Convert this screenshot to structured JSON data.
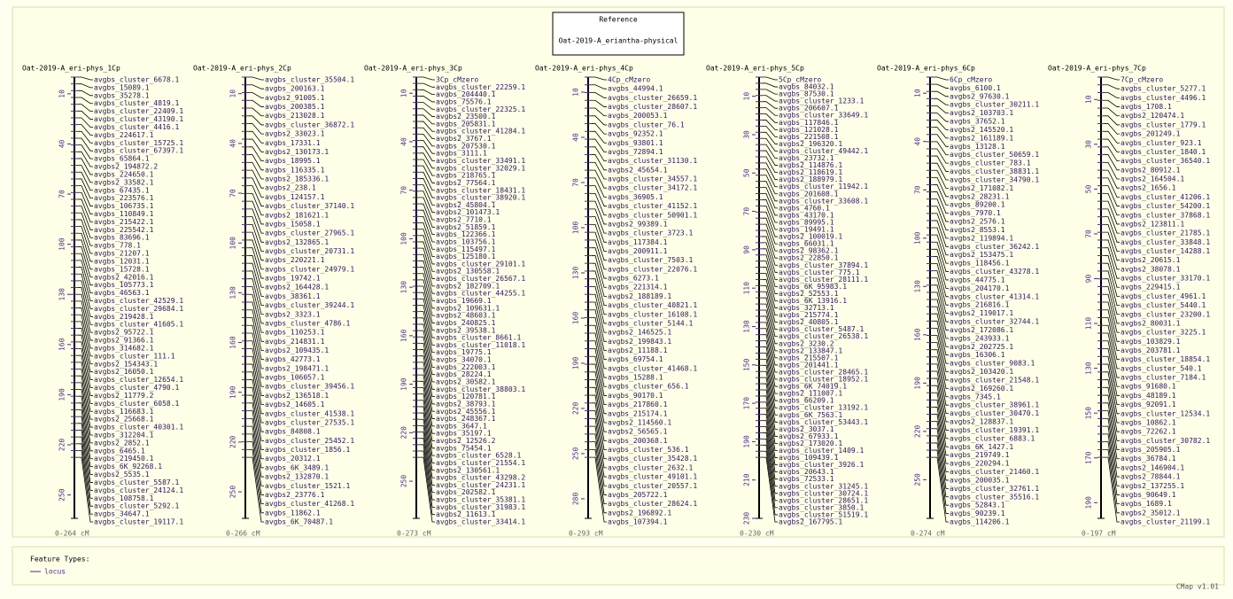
{
  "reference": {
    "title": "Reference",
    "name": "Oat-2019-A_eriantha-physical"
  },
  "maps": [
    {
      "title": "Oat-2019-A_eri-phys_1Cp",
      "range": {
        "value": 264,
        "label": "0-264 cM"
      },
      "ticks": [
        10,
        40,
        70,
        100,
        130,
        160,
        190,
        220,
        250
      ],
      "features": [
        "avgbs_cluster_6678.1",
        "avgbs_15089.1",
        "avgbs_35278.1",
        "avgbs_cluster_4819.1",
        "avgbs_cluster_22409.1",
        "avgbs_cluster_43190.1",
        "avgbs_cluster_4416.1",
        "avgbs_224617.1",
        "avgbs_cluster_15725.1",
        "avgbs_cluster_67397.1",
        "avgbs_65864.1",
        "avgbs2_194872.2",
        "avgbs_224650.1",
        "avgbs2_33582.1",
        "avgbs_67435.1",
        "avgbs_223576.1",
        "avgbs_106735.1",
        "avgbs_110849.1",
        "avgbs_215422.1",
        "avgbs_225542.1",
        "avgbs_83696.1",
        "avgbs_778.1",
        "avgbs_21207.1",
        "avgbs_12031.1",
        "avgbs_15728.1",
        "avgbs2_42016.1",
        "avgbs_105773.1",
        "avgbs_46563.1",
        "avgbs_cluster_42529.1",
        "avgbs_cluster_29684.1",
        "avgbs_219428.1",
        "avgbs_cluster_41605.1",
        "avgbs2_95722.1",
        "avgbs2_91366.1",
        "avgbs_314682.1",
        "avgbs_cluster_111.1",
        "avgbs2_154343.1",
        "avgbs2_16050.1",
        "avgbs_cluster_12654.1",
        "avgbs_cluster_4790.1",
        "avgbs2_11779.2",
        "avgbs_cluster_6058.1",
        "avgbs_116683.1",
        "avgbs2_25668.1",
        "avgbs_cluster_40301.1",
        "avgbs_312204.1",
        "avgbs2_2852.1",
        "avgbs_6465.1",
        "avgbs_219450.1",
        "avgbs_6K_92268.1",
        "avgbs2_5535.1",
        "avgbs_cluster_5587.1",
        "avgbs_cluster_24124.1",
        "avgbs_108758.1",
        "avgbs_cluster_5292.1",
        "avgbs_34647.1",
        "avgbs_cluster_19117.1"
      ]
    },
    {
      "title": "Oat-2019-A_eri-phys_2Cp",
      "range": {
        "value": 266,
        "label": "0-266 cM"
      },
      "ticks": [
        10,
        40,
        70,
        100,
        130,
        160,
        190,
        220,
        250
      ],
      "features": [
        "avgbs_cluster_35504.1",
        "avgbs_200163.1",
        "avgbs2_91005.1",
        "avgbs_200385.1",
        "avgbs_213028.1",
        "avgbs_cluster_36872.1",
        "avgbs2_33023.1",
        "avgbs_17331.1",
        "avgbs2_130173.1",
        "avgbs_18995.1",
        "avgbs_116335.1",
        "avgbs2_185336.1",
        "avgbs2_238.1",
        "avgbs_124157.1",
        "avgbs_cluster_37140.1",
        "avgbs2_181621.1",
        "avgbs_15058.1",
        "avgbs_cluster_27965.1",
        "avgbs2_132865.1",
        "avgbs_cluster_20731.1",
        "avgbs_220221.1",
        "avgbs_cluster_24979.1",
        "avgbs_19742.1",
        "avgbs2_164428.1",
        "avgbs_38361.1",
        "avgbs_cluster_39244.1",
        "avgbs2_3323.1",
        "avgbs_cluster_4786.1",
        "avgbs_110253.1",
        "avgbs_214831.1",
        "avgbs2_109435.1",
        "avgbs_42773.1",
        "avgbs2_198471.1",
        "avgbs_106057.1",
        "avgbs_cluster_39456.1",
        "avgbs2_136518.1",
        "avgbs2_14605.1",
        "avgbs_cluster_41538.1",
        "avgbs_cluster_27535.1",
        "avgbs_84808.1",
        "avgbs_cluster_25452.1",
        "avgbs_cluster_1856.1",
        "avgbs_20312.1",
        "avgbs_6K_3489.1",
        "avgbs2_132870.1",
        "avgbs_cluster_1521.1",
        "avgbs2_23776.1",
        "avgbs_cluster_41268.1",
        "avgbs_11862.1",
        "avgbs_6K_70487.1"
      ]
    },
    {
      "title": "Oat-2019-A_eri-phys_3Cp",
      "range": {
        "value": 273,
        "label": "0-273 cM"
      },
      "ticks": [
        10,
        40,
        70,
        100,
        130,
        160,
        190,
        220,
        250
      ],
      "features": [
        "3Cp_cMzero",
        "avgbs_cluster_22259.1",
        "avgbs_204440.1",
        "avgbs_75576.1",
        "avgbs_cluster_22325.1",
        "avgbs2_23500.1",
        "avgbs_205831.1",
        "avgbs_cluster_41284.1",
        "avgbs2_3767.1",
        "avgbs_207530.1",
        "avgbs_3111.1",
        "avgbs_cluster_33491.1",
        "avgbs_cluster_32029.1",
        "avgbs_218765.1",
        "avgbs2_77564.1",
        "avgbs_cluster_18431.1",
        "avgbs_cluster_38920.1",
        "avgbs2_45804.1",
        "avgbs2_101473.1",
        "avgbs2_7710.1",
        "avgbs2_51859.1",
        "avgbs_122366.1",
        "avgbs_103756.1",
        "avgbs_115497.1",
        "avgbs_125180.1",
        "avgbs_cluster_29101.1",
        "avgbs2_130558.1",
        "avgbs_cluster_26567.1",
        "avgbs2_182709.1",
        "avgbs_cluster_44255.1",
        "avgbs_19669.1",
        "avgbs2_109631.1",
        "avgbs2_48603.1",
        "avgbs_240825.1",
        "avgbs2_39538.1",
        "avgbs_cluster_8661.1",
        "avgbs_cluster_11018.1",
        "avgbs_19775.1",
        "avgbs_34070.1",
        "avgbs_222003.1",
        "avgbs_28224.1",
        "avgbs2_30582.1",
        "avgbs_cluster_38803.1",
        "avgbs_120781.1",
        "avgbs2_38793.1",
        "avgbs2_45556.1",
        "avgbs_248367.1",
        "avgbs_3647.1",
        "avgbs_35197.1",
        "avgbs2_12526.2",
        "avgbs_75454.1",
        "avgbs_cluster_6528.1",
        "avgbs_cluster_21554.1",
        "avgbs2_130561.1",
        "avgbs_cluster_43298.2",
        "avgbs_cluster_24231.1",
        "avgbs_202582.1",
        "avgbs_cluster_35381.1",
        "avgbs_cluster_31983.1",
        "avgbs2_11613.1",
        "avgbs_cluster_33414.1"
      ]
    },
    {
      "title": "Oat-2019-A_eri-phys_4Cp",
      "range": {
        "value": 293,
        "label": "0-293 cM"
      },
      "ticks": [
        10,
        40,
        70,
        100,
        130,
        160,
        190,
        220,
        250,
        280
      ],
      "features": [
        "4Cp_cMzero",
        "avgbs_44994.1",
        "avgbs_cluster_26659.1",
        "avgbs_cluster_28607.1",
        "avgbs_200053.1",
        "avgbs_cluster_76.1",
        "avgbs_92352.1",
        "avgbs_93801.1",
        "avgbs_72894.1",
        "avgbs_cluster_31130.1",
        "avgbs2_45654.1",
        "avgbs_cluster_34557.1",
        "avgbs_cluster_34172.1",
        "avgbs_36905.1",
        "avgbs_cluster_41152.1",
        "avgbs_cluster_50901.1",
        "avgbs2_99389.1",
        "avgbs_cluster_3723.1",
        "avgbs_117384.1",
        "avgbs_200911.1",
        "avgbs_cluster_7503.1",
        "avgbs_cluster_22076.1",
        "avgbs_6273.1",
        "avgbs_221314.1",
        "avgbs2_188189.1",
        "avgbs_cluster_40821.1",
        "avgbs_cluster_16108.1",
        "avgbs_cluster_5144.1",
        "avgbs2_146525.1",
        "avgbs2_199843.1",
        "avgbs2_11188.1",
        "avgbs_69754.1",
        "avgbs_cluster_41468.1",
        "avgbs_15288.1",
        "avgbs_cluster_656.1",
        "avgbs_90170.1",
        "avgbs_217860.1",
        "avgbs_215174.1",
        "avgbs2_114560.1",
        "avgbs2_56565.1",
        "avgbs_200368.1",
        "avgbs_cluster_536.1",
        "avgbs_cluster_35428.1",
        "avgbs_cluster_2632.1",
        "avgbs_cluster_49101.1",
        "avgbs_cluster_20557.1",
        "avgbs_205722.1",
        "avgbs_cluster_28624.1",
        "avgbs2_196892.1",
        "avgbs_107394.1"
      ]
    },
    {
      "title": "Oat-2019-A_eri-phys_5Cp",
      "range": {
        "value": 230,
        "label": "0-230 cM"
      },
      "ticks": [
        10,
        30,
        50,
        70,
        90,
        110,
        130,
        150,
        170,
        190,
        210,
        230
      ],
      "features": [
        "5Cp_cMzero",
        "avgbs_84032.1",
        "avgbs_87530.1",
        "avgbs_cluster_1233.1",
        "avgbs_206607.1",
        "avgbs_cluster_33649.1",
        "avgbs_117846.1",
        "avgbs_121028.1",
        "avgbs_221508.1",
        "avgbs2_196320.1",
        "avgbs_cluster_49442.1",
        "avgbs_23732.1",
        "avgbs2_114876.1",
        "avgbs2_118619.1",
        "avgbs2_188979.1",
        "avgbs_cluster_11942.1",
        "avgbs_201608.1",
        "avgbs_cluster_33608.1",
        "avgbs_4760.1",
        "avgbs_43170.1",
        "avgbs_89995.1",
        "avgbs_19491.1",
        "avgbs2_100019.1",
        "avgbs_66031.1",
        "avgbs2_98362.1",
        "avgbs2_22850.1",
        "avgbs_cluster_37894.1",
        "avgbs_cluster_775.1",
        "avgbs_cluster_28111.1",
        "avgbs_6K_95983.1",
        "avgbs2_52553.1",
        "avgbs_6K_13916.1",
        "avgbs_32713.1",
        "avgbs_215774.1",
        "avgbs2_40805.1",
        "avgbs_cluster_5487.1",
        "avgbs_cluster_26538.1",
        "avgbs2_3230.2",
        "avgbs2_133847.1",
        "avgbs_215507.1",
        "avgbs_201441.1",
        "avgbs_cluster_28465.1",
        "avgbs_cluster_18952.1",
        "avgbs_6K_74019.1",
        "avgbs2_111007.1",
        "avgbs_66209.1",
        "avgbs_cluster_13192.1",
        "avgbs_6K_7563.1",
        "avgbs_cluster_53443.1",
        "avgbs2_3037.1",
        "avgbs2_67933.1",
        "avgbs2_173020.1",
        "avgbs_cluster_1409.1",
        "avgbs_109439.1",
        "avgbs_cluster_3926.1",
        "avgbs_20643.1",
        "avgbs_72533.1",
        "avgbs_cluster_31245.1",
        "avgbs_cluster_30724.1",
        "avgbs_cluster_28651.1",
        "avgbs_cluster_3850.1",
        "avgbs_cluster_51519.1",
        "avgbs2_167795.1"
      ]
    },
    {
      "title": "Oat-2019-A_eri-phys_6Cp",
      "range": {
        "value": 274,
        "label": "0-274 cM"
      },
      "ticks": [
        10,
        40,
        70,
        100,
        130,
        160,
        190,
        220,
        250
      ],
      "features": [
        "6Cp_cMzero",
        "avgbs_6100.1",
        "avgbs2_97630.1",
        "avgbs_cluster_30211.1",
        "avgbs2_103703.1",
        "avgbs_37652.1",
        "avgbs2_145520.1",
        "avgbs2_161189.1",
        "avgbs_13128.1",
        "avgbs_cluster_50659.1",
        "avgbs_cluster_783.1",
        "avgbs_cluster_38831.1",
        "avgbs_cluster_34790.1",
        "avgbs2_171082.1",
        "avgbs2_28231.1",
        "avgbs_89200.1",
        "avgbs_7970.1",
        "avgbs2_2576.1",
        "avgbs2_8553.1",
        "avgbs2_119894.1",
        "avgbs_cluster_36242.1",
        "avgbs2_153475.1",
        "avgbs_118456.1",
        "avgbs_cluster_43278.1",
        "avgbs_44775.1",
        "avgbs_204170.1",
        "avgbs_cluster_41314.1",
        "avgbs_216816.1",
        "avgbs2_119017.1",
        "avgbs_cluster_32744.1",
        "avgbs2_172086.1",
        "avgbs_243933.1",
        "avgbs2_202725.1",
        "avgbs_16306.1",
        "avgbs_cluster_9083.1",
        "avgbs2_103420.1",
        "avgbs_cluster_21548.1",
        "avgbs2_169260.1",
        "avgbs_7345.1",
        "avgbs_cluster_38961.1",
        "avgbs_cluster_30470.1",
        "avgbs2_128837.1",
        "avgbs_cluster_19391.1",
        "avgbs_cluster_6883.1",
        "avgbs_6K_1427.1",
        "avgbs_219749.1",
        "avgbs_220294.1",
        "avgbs_cluster_21460.1",
        "avgbs_200035.1",
        "avgbs_cluster_32761.1",
        "avgbs_cluster_35516.1",
        "avgbs_52843.1",
        "avgbs_90239.1",
        "avgbs_114206.1"
      ]
    },
    {
      "title": "Oat-2019-A_eri-phys_7Cp",
      "range": {
        "value": 197,
        "label": "0-197 cM"
      },
      "ticks": [
        10,
        30,
        50,
        70,
        90,
        110,
        130,
        150,
        170,
        190
      ],
      "features": [
        "7Cp_cMzero",
        "avgbs_cluster_5277.1",
        "avgbs_cluster_4496.1",
        "avgbs_1708.1",
        "avgbs2_120474.1",
        "avgbs_cluster_1779.1",
        "avgbs_201249.1",
        "avgbs_cluster_923.1",
        "avgbs_cluster_1840.1",
        "avgbs_cluster_36540.1",
        "avgbs2_80912.1",
        "avgbs2_164504.1",
        "avgbs2_1656.1",
        "avgbs_cluster_41206.1",
        "avgbs_cluster_54200.1",
        "avgbs_cluster_37868.1",
        "avgbs2_123811.1",
        "avgbs_cluster_21785.1",
        "avgbs_cluster_33848.1",
        "avgbs_cluster_14288.1",
        "avgbs2_20615.1",
        "avgbs2_38078.1",
        "avgbs_cluster_33170.1",
        "avgbs_229415.1",
        "avgbs_cluster_4961.1",
        "avgbs_cluster_5440.1",
        "avgbs_cluster_23200.1",
        "avgbs2_80031.1",
        "avgbs_cluster_3225.1",
        "avgbs_103829.1",
        "avgbs_203781.1",
        "avgbs_cluster_18854.1",
        "avgbs_cluster_540.1",
        "avgbs_cluster_7184.1",
        "avgbs_91680.1",
        "avgbs_48189.1",
        "avgbs_92091.1",
        "avgbs_cluster_12534.1",
        "avgbs_10862.1",
        "avgbs_72262.1",
        "avgbs_cluster_30782.1",
        "avgbs_205905.1",
        "avgbs_36784.1",
        "avgbs2_146904.1",
        "avgbs2_78844.1",
        "avgbs2_137255.1",
        "avgbs_90649.1",
        "avgbs_1689.1",
        "avgbs2_35012.1",
        "avgbs_cluster_21199.1"
      ]
    }
  ],
  "legend": {
    "title": "Feature Types:",
    "items": [
      "locus"
    ]
  },
  "footer": "CMap v1.01"
}
